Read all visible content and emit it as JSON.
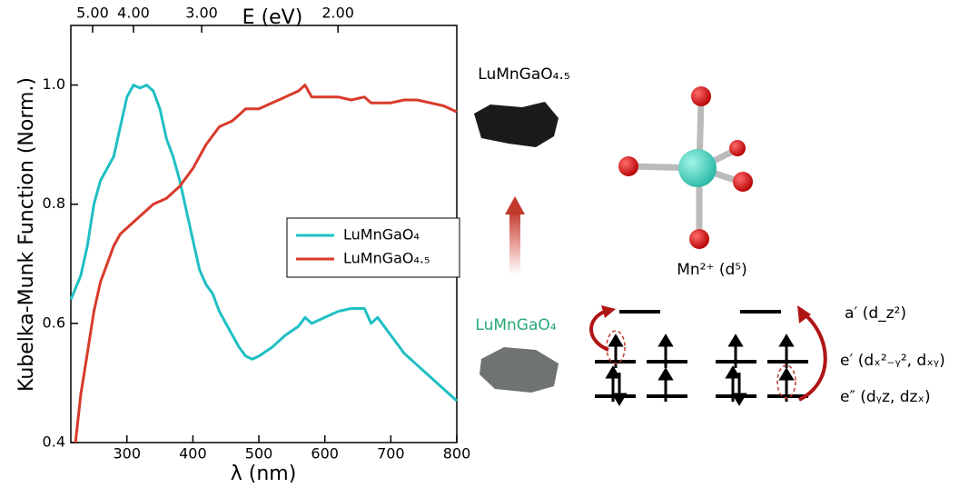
{
  "chart_data": {
    "type": "line",
    "x_label": "λ (nm)",
    "y_label": "Kubelka-Munk Function (Norm.)",
    "x2_label": "E (eV)",
    "xlim": [
      215,
      800
    ],
    "xticks": [
      300,
      400,
      500,
      600,
      700,
      800
    ],
    "ylim": [
      0.4,
      1.1
    ],
    "yticks": [
      0.4,
      0.6,
      0.8,
      {
        "value": 1.0,
        "label": "1.0"
      }
    ],
    "x2ticks": [
      {
        "value": 5.0,
        "label": "5.00"
      },
      {
        "value": 4.0,
        "label": "4.00"
      },
      {
        "value": 3.0,
        "label": "3.00"
      },
      {
        "value": 2.0,
        "label": "2.00"
      }
    ],
    "legend": "center-right",
    "series": [
      {
        "name": "LuMnGaO₄",
        "color": "#1fbfc4",
        "x": [
          215,
          230,
          240,
          250,
          260,
          270,
          280,
          290,
          300,
          310,
          320,
          330,
          340,
          350,
          360,
          370,
          380,
          390,
          400,
          410,
          420,
          430,
          440,
          450,
          460,
          470,
          480,
          490,
          500,
          520,
          540,
          560,
          570,
          580,
          600,
          620,
          640,
          660,
          670,
          680,
          700,
          720,
          740,
          760,
          780,
          800
        ],
        "values": [
          0.64,
          0.68,
          0.73,
          0.8,
          0.84,
          0.86,
          0.88,
          0.93,
          0.98,
          1.0,
          0.995,
          1.0,
          0.99,
          0.96,
          0.91,
          0.88,
          0.84,
          0.79,
          0.74,
          0.69,
          0.665,
          0.65,
          0.62,
          0.6,
          0.58,
          0.56,
          0.545,
          0.54,
          0.545,
          0.56,
          0.58,
          0.595,
          0.61,
          0.6,
          0.61,
          0.62,
          0.625,
          0.625,
          0.6,
          0.61,
          0.58,
          0.55,
          0.53,
          0.51,
          0.49,
          0.47
        ]
      },
      {
        "name": "LuMnGaO₄.₅",
        "color": "#d93a2b",
        "x": [
          222,
          230,
          240,
          250,
          260,
          270,
          280,
          290,
          300,
          320,
          340,
          360,
          380,
          400,
          420,
          440,
          460,
          470,
          480,
          500,
          520,
          540,
          560,
          570,
          580,
          600,
          620,
          640,
          660,
          670,
          680,
          700,
          720,
          740,
          760,
          780,
          800
        ],
        "values": [
          0.4,
          0.48,
          0.55,
          0.62,
          0.67,
          0.7,
          0.73,
          0.75,
          0.76,
          0.78,
          0.8,
          0.81,
          0.83,
          0.86,
          0.9,
          0.93,
          0.94,
          0.95,
          0.96,
          0.96,
          0.97,
          0.98,
          0.99,
          1.0,
          0.98,
          0.98,
          0.98,
          0.975,
          0.98,
          0.97,
          0.97,
          0.97,
          0.975,
          0.975,
          0.97,
          0.965,
          0.955
        ]
      }
    ]
  },
  "diagram": {
    "oxidized_label": "LuMnGaO₄.₅",
    "reduced_label": "LuMnGaO₄",
    "ion_label": "Mn²⁺ (d⁵)",
    "levels": [
      "a′ (d_z²)",
      "e′ (dₓ²₋ᵧ², dₓᵧ)",
      "e″ (dᵧz, dzₓ)"
    ]
  }
}
